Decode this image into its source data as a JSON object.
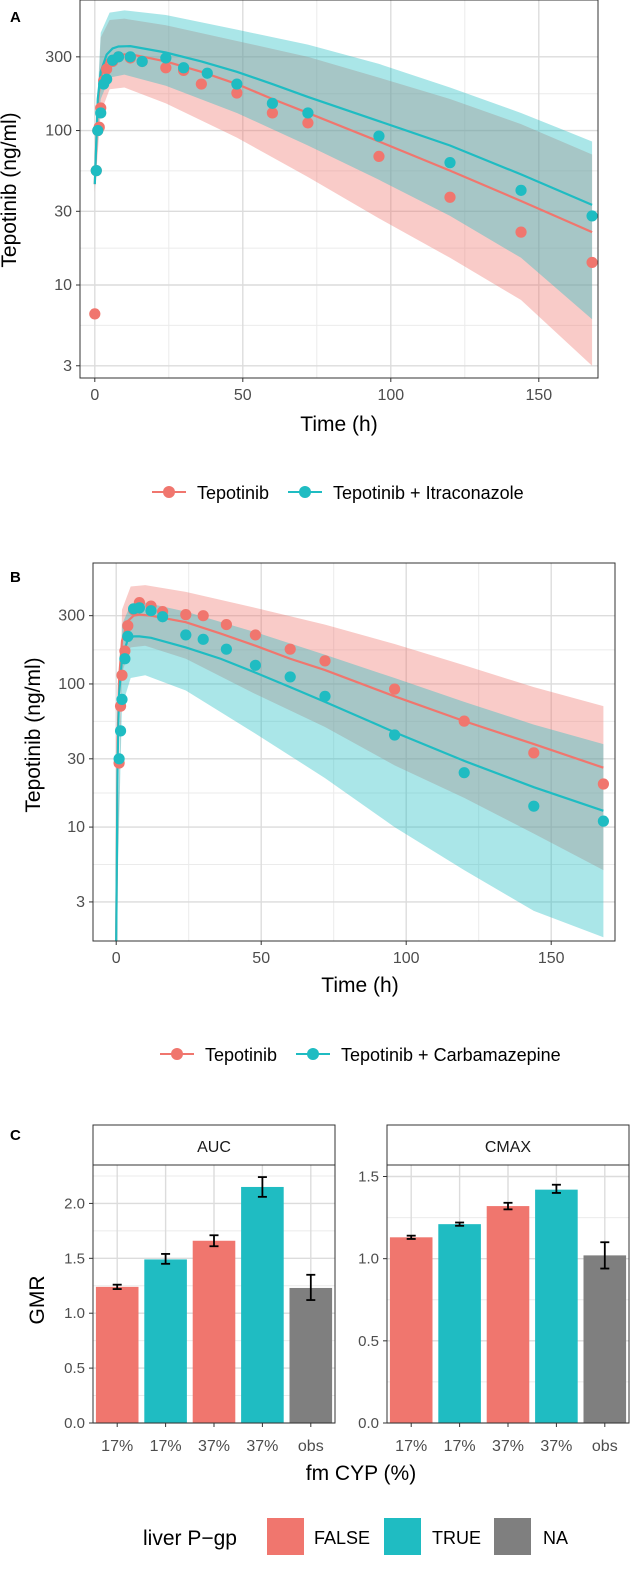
{
  "colors": {
    "red": "#F0766E",
    "teal": "#1FBCC2",
    "gray": "#7F7F7F",
    "redBand": "#F3B0A8",
    "tealBand": "#A9D7DB",
    "overlap": "#A6A6A6"
  },
  "chart_data": [
    {
      "panel": "A",
      "type": "line",
      "scale": "log",
      "title": "",
      "xlabel": "Time (h)",
      "ylabel": "Tepotinib (ng/ml)",
      "xlim": [
        -5,
        170
      ],
      "ylim": [
        2.5,
        700
      ],
      "xticks": [
        0,
        50,
        100,
        150
      ],
      "yticks": [
        3,
        10,
        30,
        100,
        300
      ],
      "legend": [
        "Tepotinib",
        "Tepotinib + Itraconazole"
      ],
      "series": [
        {
          "name": "Tepotinib",
          "color": "red",
          "line": [
            [
              0,
              45
            ],
            [
              1,
              150
            ],
            [
              2,
              220
            ],
            [
              4,
              285
            ],
            [
              6,
              305
            ],
            [
              8,
              310
            ],
            [
              12,
              312
            ],
            [
              24,
              280
            ],
            [
              36,
              240
            ],
            [
              48,
              200
            ],
            [
              60,
              160
            ],
            [
              72,
              130
            ],
            [
              96,
              85
            ],
            [
              120,
              55
            ],
            [
              144,
              35
            ],
            [
              168,
              22
            ]
          ],
          "band_upper": [
            [
              0,
              60
            ],
            [
              2,
              400
            ],
            [
              5,
              520
            ],
            [
              10,
              530
            ],
            [
              24,
              480
            ],
            [
              48,
              380
            ],
            [
              72,
              300
            ],
            [
              96,
              220
            ],
            [
              120,
              160
            ],
            [
              144,
              110
            ],
            [
              168,
              70
            ]
          ],
          "band_lower": [
            [
              0,
              40
            ],
            [
              2,
              130
            ],
            [
              5,
              185
            ],
            [
              10,
              190
            ],
            [
              24,
              150
            ],
            [
              48,
              90
            ],
            [
              72,
              50
            ],
            [
              96,
              27
            ],
            [
              120,
              15
            ],
            [
              144,
              8
            ],
            [
              168,
              3
            ]
          ],
          "points": [
            [
              0,
              6.5
            ],
            [
              0.5,
              55
            ],
            [
              1,
              100
            ],
            [
              1.5,
              105
            ],
            [
              2,
              140
            ],
            [
              3,
              210
            ],
            [
              4,
              250
            ],
            [
              6,
              280
            ],
            [
              8,
              300
            ],
            [
              12,
              295
            ],
            [
              16,
              280
            ],
            [
              24,
              255
            ],
            [
              30,
              245
            ],
            [
              36,
              200
            ],
            [
              48,
              175
            ],
            [
              60,
              130
            ],
            [
              72,
              112
            ],
            [
              96,
              68
            ],
            [
              120,
              37
            ],
            [
              144,
              22
            ],
            [
              168,
              14
            ]
          ]
        },
        {
          "name": "Tepotinib + Itraconazole",
          "color": "teal",
          "line": [
            [
              0,
              45
            ],
            [
              1,
              160
            ],
            [
              2,
              240
            ],
            [
              4,
              310
            ],
            [
              6,
              340
            ],
            [
              8,
              350
            ],
            [
              12,
              352
            ],
            [
              24,
              320
            ],
            [
              36,
              280
            ],
            [
              48,
              240
            ],
            [
              60,
              200
            ],
            [
              72,
              165
            ],
            [
              96,
              115
            ],
            [
              120,
              80
            ],
            [
              144,
              52
            ],
            [
              168,
              33
            ]
          ],
          "band_upper": [
            [
              0,
              70
            ],
            [
              2,
              430
            ],
            [
              5,
              580
            ],
            [
              10,
              600
            ],
            [
              24,
              560
            ],
            [
              48,
              450
            ],
            [
              72,
              360
            ],
            [
              96,
              270
            ],
            [
              120,
              190
            ],
            [
              144,
              130
            ],
            [
              168,
              85
            ]
          ],
          "band_lower": [
            [
              0,
              42
            ],
            [
              2,
              160
            ],
            [
              5,
              220
            ],
            [
              10,
              230
            ],
            [
              24,
              195
            ],
            [
              48,
              130
            ],
            [
              72,
              80
            ],
            [
              96,
              48
            ],
            [
              120,
              28
            ],
            [
              144,
              15
            ],
            [
              168,
              6
            ]
          ],
          "points": [
            [
              0.5,
              55
            ],
            [
              1,
              100
            ],
            [
              2,
              130
            ],
            [
              3,
              200
            ],
            [
              4,
              215
            ],
            [
              6,
              285
            ],
            [
              8,
              300
            ],
            [
              12,
              300
            ],
            [
              16,
              280
            ],
            [
              24,
              295
            ],
            [
              30,
              255
            ],
            [
              38,
              235
            ],
            [
              48,
              200
            ],
            [
              60,
              150
            ],
            [
              72,
              130
            ],
            [
              96,
              92
            ],
            [
              120,
              62
            ],
            [
              144,
              41
            ],
            [
              168,
              28
            ]
          ]
        }
      ]
    },
    {
      "panel": "B",
      "type": "line",
      "scale": "log",
      "title": "",
      "xlabel": "Time (h)",
      "ylabel": "Tepotinib (ng/ml)",
      "xlim": [
        -8,
        172
      ],
      "ylim": [
        1.6,
        700
      ],
      "xticks": [
        0,
        50,
        100,
        150
      ],
      "yticks": [
        3,
        10,
        30,
        100,
        300
      ],
      "legend": [
        "Tepotinib",
        "Tepotinib + Carbamazepine"
      ],
      "series": [
        {
          "name": "Tepotinib",
          "color": "red",
          "line": [
            [
              0,
              1.6
            ],
            [
              0.5,
              40
            ],
            [
              1,
              110
            ],
            [
              2,
              200
            ],
            [
              4,
              275
            ],
            [
              6,
              300
            ],
            [
              8,
              305
            ],
            [
              12,
              300
            ],
            [
              24,
              270
            ],
            [
              36,
              225
            ],
            [
              48,
              185
            ],
            [
              60,
              150
            ],
            [
              72,
              125
            ],
            [
              96,
              82
            ],
            [
              120,
              55
            ],
            [
              144,
              38
            ],
            [
              168,
              26
            ]
          ],
          "band_upper": [
            [
              0,
              1.6
            ],
            [
              2,
              330
            ],
            [
              5,
              480
            ],
            [
              10,
              490
            ],
            [
              24,
              440
            ],
            [
              48,
              340
            ],
            [
              72,
              260
            ],
            [
              96,
              190
            ],
            [
              120,
              135
            ],
            [
              144,
              95
            ],
            [
              168,
              70
            ]
          ],
          "band_lower": [
            [
              0,
              1.6
            ],
            [
              2,
              120
            ],
            [
              5,
              180
            ],
            [
              10,
              185
            ],
            [
              24,
              150
            ],
            [
              48,
              85
            ],
            [
              72,
              50
            ],
            [
              96,
              27
            ],
            [
              120,
              16
            ],
            [
              144,
              9
            ],
            [
              168,
              5
            ]
          ],
          "points": [
            [
              1,
              28
            ],
            [
              1.5,
              70
            ],
            [
              2,
              115
            ],
            [
              3,
              170
            ],
            [
              4,
              255
            ],
            [
              6,
              330
            ],
            [
              8,
              370
            ],
            [
              12,
              350
            ],
            [
              16,
              320
            ],
            [
              24,
              305
            ],
            [
              30,
              300
            ],
            [
              38,
              260
            ],
            [
              48,
              220
            ],
            [
              60,
              175
            ],
            [
              72,
              145
            ],
            [
              96,
              92
            ],
            [
              120,
              55
            ],
            [
              144,
              33
            ],
            [
              168,
              20
            ]
          ]
        },
        {
          "name": "Tepotinib + Carbamazepine",
          "color": "teal",
          "line": [
            [
              0,
              1.6
            ],
            [
              0.5,
              30
            ],
            [
              1,
              85
            ],
            [
              2,
              150
            ],
            [
              4,
              205
            ],
            [
              6,
              215
            ],
            [
              8,
              215
            ],
            [
              12,
              210
            ],
            [
              24,
              180
            ],
            [
              36,
              150
            ],
            [
              48,
              120
            ],
            [
              60,
              95
            ],
            [
              72,
              75
            ],
            [
              96,
              46
            ],
            [
              120,
              29
            ],
            [
              144,
              19
            ],
            [
              168,
              13
            ]
          ],
          "band_upper": [
            [
              0,
              1.6
            ],
            [
              2,
              260
            ],
            [
              5,
              360
            ],
            [
              10,
              370
            ],
            [
              24,
              320
            ],
            [
              48,
              230
            ],
            [
              72,
              160
            ],
            [
              96,
              110
            ],
            [
              120,
              75
            ],
            [
              144,
              52
            ],
            [
              168,
              38
            ]
          ],
          "band_lower": [
            [
              0,
              1.6
            ],
            [
              2,
              70
            ],
            [
              5,
              110
            ],
            [
              10,
              115
            ],
            [
              24,
              90
            ],
            [
              48,
              45
            ],
            [
              72,
              22
            ],
            [
              96,
              10
            ],
            [
              120,
              5
            ],
            [
              144,
              2.6
            ],
            [
              168,
              1.7
            ]
          ],
          "points": [
            [
              1,
              30
            ],
            [
              1.5,
              47
            ],
            [
              2,
              78
            ],
            [
              3,
              150
            ],
            [
              4,
              215
            ],
            [
              6,
              335
            ],
            [
              8,
              340
            ],
            [
              12,
              325
            ],
            [
              16,
              295
            ],
            [
              24,
              220
            ],
            [
              30,
              205
            ],
            [
              38,
              175
            ],
            [
              48,
              135
            ],
            [
              60,
              112
            ],
            [
              72,
              82
            ],
            [
              96,
              44
            ],
            [
              120,
              24
            ],
            [
              144,
              14
            ],
            [
              168,
              11
            ]
          ]
        }
      ]
    },
    {
      "panel": "C",
      "type": "bar",
      "xlabel": "fm CYP (%)",
      "ylabel": "GMR",
      "categories": [
        "17%",
        "17%",
        "37%",
        "37%",
        "obs"
      ],
      "legend_title": "liver P−gp",
      "legend": [
        "FALSE",
        "TRUE",
        "NA"
      ],
      "facets": [
        {
          "title": "AUC",
          "ylim": [
            0,
            2.35
          ],
          "yticks": [
            0.0,
            0.5,
            1.0,
            1.5,
            2.0
          ],
          "ytick_labels": [
            "0.0",
            "0.5",
            "1.0",
            "1.5",
            "2.0"
          ],
          "values": [
            1.24,
            1.49,
            1.66,
            2.15,
            1.23
          ],
          "errors": [
            [
              1.22,
              1.26
            ],
            [
              1.45,
              1.54
            ],
            [
              1.61,
              1.71
            ],
            [
              2.06,
              2.24
            ],
            [
              1.12,
              1.35
            ]
          ],
          "groups": [
            "FALSE",
            "TRUE",
            "FALSE",
            "TRUE",
            "NA"
          ]
        },
        {
          "title": "CMAX",
          "ylim": [
            0,
            1.57
          ],
          "yticks": [
            0.0,
            0.5,
            1.0,
            1.5
          ],
          "ytick_labels": [
            "0.0",
            "0.5",
            "1.0",
            "1.5"
          ],
          "values": [
            1.13,
            1.21,
            1.32,
            1.42,
            1.02
          ],
          "errors": [
            [
              1.12,
              1.14
            ],
            [
              1.2,
              1.22
            ],
            [
              1.3,
              1.34
            ],
            [
              1.4,
              1.45
            ],
            [
              0.94,
              1.1
            ]
          ],
          "groups": [
            "FALSE",
            "TRUE",
            "FALSE",
            "TRUE",
            "NA"
          ]
        }
      ]
    }
  ]
}
